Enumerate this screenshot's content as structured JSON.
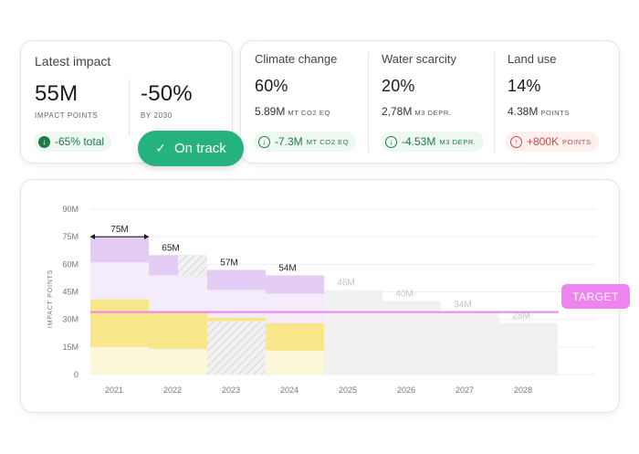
{
  "latest": {
    "title": "Latest impact",
    "value1": "55M",
    "caption1": "IMPACT POINTS",
    "value2": "-50%",
    "caption2": "BY 2030",
    "change": "-65% total",
    "change_icon": "arrow-down-icon"
  },
  "status": {
    "label": "On track",
    "icon": "check-icon"
  },
  "metrics": [
    {
      "title": "Climate change",
      "percent": "60%",
      "amount": "5.89M",
      "unit": "MT CO2 EQ",
      "change": "-7.3M",
      "change_unit": "MT CO2 EQ",
      "direction": "down"
    },
    {
      "title": "Water scarcity",
      "percent": "20%",
      "amount": "2,78M",
      "unit": "M3 DEPR.",
      "change": "-4.53M",
      "change_unit": "M3 DEPR.",
      "direction": "down"
    },
    {
      "title": "Land use",
      "percent": "14%",
      "amount": "4.38M",
      "unit": "POINTS",
      "change": "+800K",
      "change_unit": "POINTS",
      "direction": "up"
    }
  ],
  "colors": {
    "accent_green": "#25b27e",
    "positive_text": "#1f7a46",
    "negative_text": "#d2483c",
    "target": "#ee84ee",
    "purple_dark": "#e3cdf5",
    "purple_light": "#f4ebfb",
    "yellow_dark": "#f8e68a",
    "yellow_light": "#fcf7d9",
    "projection": "#f1f1f1"
  },
  "target_label": "TARGET",
  "chart_data": {
    "type": "bar",
    "title": "",
    "xlabel": "",
    "ylabel": "IMPACT POINTS",
    "ylim": [
      0,
      90
    ],
    "yticks": [
      "0",
      "15M",
      "30M",
      "45M",
      "60M",
      "75M",
      "90M"
    ],
    "categories": [
      "2021",
      "2022",
      "2023",
      "2024",
      "2025",
      "2026",
      "2027",
      "2028"
    ],
    "totals": [
      75,
      65,
      57,
      54,
      46,
      40,
      34,
      28
    ],
    "value_labels": [
      "75M",
      "65M",
      "57M",
      "54M",
      "46M",
      "40M",
      "34M",
      "28M"
    ],
    "projected": [
      false,
      false,
      false,
      false,
      true,
      true,
      true,
      true
    ],
    "target": 34,
    "segments": [
      [
        {
          "from": 0,
          "to": 15,
          "tone": "yellow_light"
        },
        {
          "from": 15,
          "to": 41,
          "tone": "yellow_dark"
        },
        {
          "from": 41,
          "to": 61,
          "tone": "purple_light"
        },
        {
          "from": 61,
          "to": 75,
          "tone": "purple_dark"
        }
      ],
      [
        {
          "from": 0,
          "to": 14,
          "tone": "yellow_light"
        },
        {
          "from": 14,
          "to": 34,
          "tone": "yellow_dark"
        },
        {
          "from": 34,
          "to": 54,
          "tone": "purple_light"
        },
        {
          "from": 54,
          "to": 65,
          "tone": "purple_dark"
        },
        {
          "from": 54,
          "to": 65,
          "tone": "hatch",
          "half": "right"
        }
      ],
      [
        {
          "from": 0,
          "to": 29,
          "tone": "hatch"
        },
        {
          "from": 29,
          "to": 31,
          "tone": "yellow_dark"
        },
        {
          "from": 31,
          "to": 46,
          "tone": "purple_light"
        },
        {
          "from": 46,
          "to": 57,
          "tone": "purple_dark"
        }
      ],
      [
        {
          "from": 0,
          "to": 13,
          "tone": "yellow_light"
        },
        {
          "from": 13,
          "to": 28,
          "tone": "yellow_dark"
        },
        {
          "from": 28,
          "to": 44,
          "tone": "purple_light"
        },
        {
          "from": 44,
          "to": 54,
          "tone": "purple_dark"
        }
      ],
      [
        {
          "from": 0,
          "to": 46,
          "tone": "projection"
        }
      ],
      [
        {
          "from": 0,
          "to": 40,
          "tone": "projection"
        }
      ],
      [
        {
          "from": 0,
          "to": 34,
          "tone": "projection"
        }
      ],
      [
        {
          "from": 0,
          "to": 28,
          "tone": "projection"
        }
      ]
    ],
    "grid": true,
    "legend": "none"
  }
}
